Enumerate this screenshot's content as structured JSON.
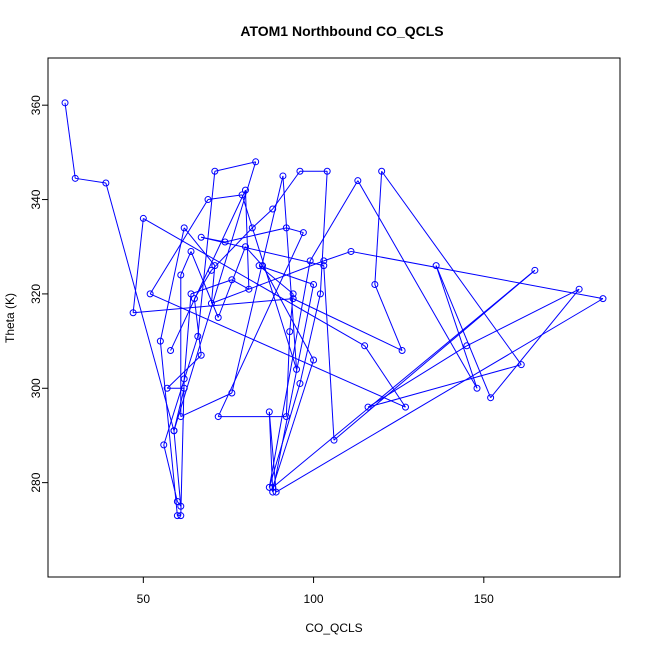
{
  "chart_data": {
    "type": "line",
    "title": "ATOM1 Northbound CO_QCLS",
    "xlabel": "CO_QCLS",
    "ylabel": "Theta (K)",
    "xlim": [
      22,
      190
    ],
    "ylim": [
      260,
      370
    ],
    "xticks": [
      50,
      100,
      150
    ],
    "yticks": [
      280,
      300,
      320,
      340,
      360
    ],
    "markers": "open-circle",
    "grid": false,
    "legend": "none",
    "series": [
      {
        "color": "#0000ff",
        "points": [
          [
            27,
            360.5
          ],
          [
            30,
            344.5
          ],
          [
            39,
            343.5
          ],
          [
            59,
            291
          ],
          [
            61,
            275
          ],
          [
            60,
            276
          ],
          [
            56,
            288
          ],
          [
            66,
            311
          ],
          [
            71,
            346
          ],
          [
            83,
            348
          ],
          [
            59,
            291
          ],
          [
            62,
            300
          ],
          [
            57,
            300
          ],
          [
            67,
            307
          ],
          [
            65,
            319
          ],
          [
            70,
            325
          ],
          [
            82,
            334
          ],
          [
            88,
            338
          ],
          [
            96,
            346
          ],
          [
            104,
            346
          ],
          [
            102,
            320
          ],
          [
            96,
            301
          ],
          [
            87,
            279
          ],
          [
            99,
            327
          ],
          [
            113,
            344
          ],
          [
            148,
            300
          ],
          [
            136,
            326
          ],
          [
            152,
            298
          ],
          [
            178,
            321
          ],
          [
            145,
            309
          ],
          [
            116,
            296
          ],
          [
            161,
            305
          ],
          [
            120,
            346
          ],
          [
            118,
            322
          ],
          [
            126,
            308
          ],
          [
            94,
            319
          ],
          [
            47,
            316
          ],
          [
            50,
            336
          ],
          [
            115,
            309
          ],
          [
            127,
            296
          ],
          [
            52,
            320
          ],
          [
            69,
            340
          ],
          [
            79,
            341
          ],
          [
            95,
            304
          ],
          [
            91,
            345
          ],
          [
            76,
            299
          ],
          [
            61,
            294
          ],
          [
            61,
            324
          ],
          [
            64,
            329
          ],
          [
            72,
            315
          ],
          [
            80,
            330
          ],
          [
            85,
            326
          ],
          [
            100,
            306
          ],
          [
            88,
            279
          ],
          [
            165,
            325
          ],
          [
            106,
            289
          ],
          [
            103,
            326
          ],
          [
            67,
            332
          ],
          [
            74,
            331
          ],
          [
            92,
            334
          ],
          [
            97,
            333
          ],
          [
            72,
            294
          ],
          [
            92,
            294
          ],
          [
            93,
            312
          ],
          [
            94,
            320
          ],
          [
            84,
            326
          ],
          [
            100,
            322
          ],
          [
            88,
            278
          ],
          [
            87,
            295
          ],
          [
            89,
            278
          ],
          [
            185,
            319
          ],
          [
            111,
            329
          ],
          [
            103,
            327
          ],
          [
            70,
            318
          ],
          [
            71,
            326
          ],
          [
            62,
            334
          ],
          [
            55,
            310
          ],
          [
            60,
            273
          ],
          [
            61,
            273
          ],
          [
            62,
            302
          ],
          [
            64,
            320
          ],
          [
            76,
            323
          ],
          [
            81,
            321
          ],
          [
            80,
            342
          ],
          [
            58,
            308
          ]
        ]
      }
    ]
  }
}
